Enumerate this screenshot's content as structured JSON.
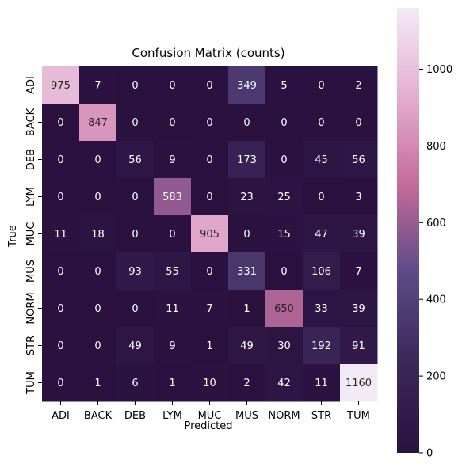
{
  "chart_data": {
    "type": "heatmap",
    "title": "Confusion Matrix (counts)",
    "xlabel": "Predicted",
    "ylabel": "True",
    "x_categories": [
      "ADI",
      "BACK",
      "DEB",
      "LYM",
      "MUC",
      "MUS",
      "NORM",
      "STR",
      "TUM"
    ],
    "y_categories": [
      "ADI",
      "BACK",
      "DEB",
      "LYM",
      "MUC",
      "MUS",
      "NORM",
      "STR",
      "TUM"
    ],
    "values": [
      [
        975,
        7,
        0,
        0,
        0,
        349,
        5,
        0,
        2
      ],
      [
        0,
        847,
        0,
        0,
        0,
        0,
        0,
        0,
        0
      ],
      [
        0,
        0,
        56,
        9,
        0,
        173,
        0,
        45,
        56
      ],
      [
        0,
        0,
        0,
        583,
        0,
        23,
        25,
        0,
        3
      ],
      [
        11,
        18,
        0,
        0,
        905,
        0,
        15,
        47,
        39
      ],
      [
        0,
        0,
        93,
        55,
        0,
        331,
        0,
        106,
        7
      ],
      [
        0,
        0,
        0,
        11,
        7,
        1,
        650,
        33,
        39
      ],
      [
        0,
        0,
        49,
        9,
        1,
        49,
        30,
        192,
        91
      ],
      [
        0,
        1,
        6,
        1,
        10,
        2,
        42,
        11,
        1160
      ]
    ],
    "colorbar": {
      "range": [
        0,
        1160
      ],
      "ticks": [
        0,
        200,
        400,
        600,
        800,
        1000
      ]
    },
    "colormap_stops": [
      "#2a1140",
      "#3b2859",
      "#5b4a86",
      "#c46a9a",
      "#e4aed0",
      "#f2ebf7"
    ]
  }
}
